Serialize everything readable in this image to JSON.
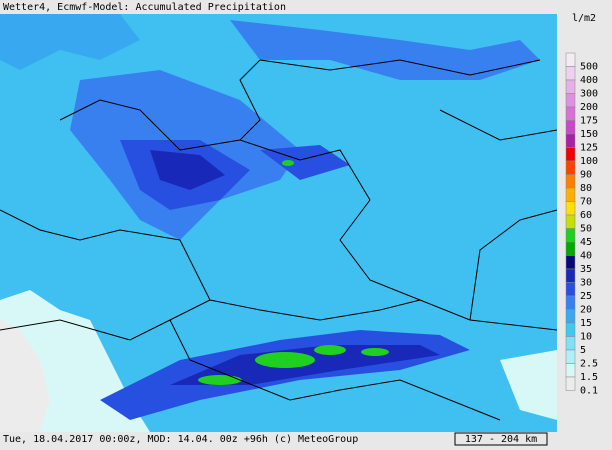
{
  "header": {
    "title": "Wetter4, Ecmwf-Model: Accumulated Precipitation"
  },
  "footer": {
    "info": "Tue, 18.04.2017 00:00z, MOD: 14.04. 00z +96h (c) MeteoGroup",
    "scale": "137 - 204 km"
  },
  "legend": {
    "unit": "l/m2",
    "items": [
      {
        "label": "500",
        "color": "#f4ecf4"
      },
      {
        "label": "400",
        "color": "#f0d0f0"
      },
      {
        "label": "300",
        "color": "#e8b0e8"
      },
      {
        "label": "200",
        "color": "#e090e0"
      },
      {
        "label": "175",
        "color": "#d870d8"
      },
      {
        "label": "150",
        "color": "#c848c8"
      },
      {
        "label": "125",
        "color": "#a820a8"
      },
      {
        "label": "100",
        "color": "#f00000"
      },
      {
        "label": "90",
        "color": "#ff4000"
      },
      {
        "label": "80",
        "color": "#ff8000"
      },
      {
        "label": "70",
        "color": "#ffb000"
      },
      {
        "label": "60",
        "color": "#ffe000"
      },
      {
        "label": "50",
        "color": "#c8e000"
      },
      {
        "label": "45",
        "color": "#20d020"
      },
      {
        "label": "40",
        "color": "#00a800"
      },
      {
        "label": "35",
        "color": "#08087a"
      },
      {
        "label": "30",
        "color": "#1828b8"
      },
      {
        "label": "25",
        "color": "#2850e0"
      },
      {
        "label": "20",
        "color": "#3880f0"
      },
      {
        "label": "15",
        "color": "#38a8f0"
      },
      {
        "label": "10",
        "color": "#40c8f0"
      },
      {
        "label": "5",
        "color": "#80e0f8"
      },
      {
        "label": "2.5",
        "color": "#b0f0f8"
      },
      {
        "label": "1.5",
        "color": "#d8f8f8"
      },
      {
        "label": "0.1",
        "color": "#ececec"
      }
    ]
  }
}
